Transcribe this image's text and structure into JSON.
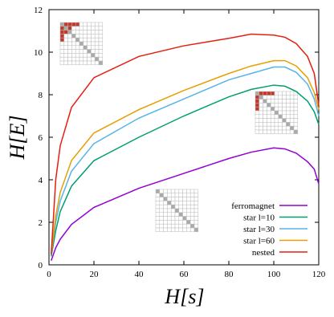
{
  "chart_data": {
    "type": "line",
    "x_label": "H[s]",
    "y_label": "H[E]",
    "x": [
      1,
      3,
      5,
      10,
      20,
      40,
      60,
      80,
      90,
      100,
      105,
      110,
      115,
      118,
      120
    ],
    "series": [
      {
        "name": "ferromagnet",
        "color": "#9400d3",
        "values": [
          0.2,
          0.8,
          1.2,
          1.9,
          2.7,
          3.6,
          4.3,
          5.0,
          5.3,
          5.5,
          5.45,
          5.25,
          4.85,
          4.5,
          3.8
        ]
      },
      {
        "name": "star l=10",
        "color": "#009e73",
        "values": [
          0.4,
          1.6,
          2.5,
          3.7,
          4.9,
          6.0,
          7.0,
          7.9,
          8.25,
          8.45,
          8.4,
          8.15,
          7.7,
          7.2,
          6.6
        ]
      },
      {
        "name": "star l=30",
        "color": "#56b4e9",
        "values": [
          0.5,
          2.0,
          3.0,
          4.4,
          5.7,
          6.9,
          7.8,
          8.7,
          9.0,
          9.3,
          9.3,
          9.05,
          8.5,
          7.8,
          7.0
        ]
      },
      {
        "name": "star l=60",
        "color": "#e69f00",
        "values": [
          0.5,
          2.3,
          3.4,
          4.9,
          6.2,
          7.3,
          8.2,
          9.0,
          9.35,
          9.6,
          9.6,
          9.35,
          8.8,
          8.1,
          7.3
        ]
      },
      {
        "name": "nested",
        "color": "#e51e10",
        "values": [
          0.5,
          4.0,
          5.6,
          7.4,
          8.8,
          9.8,
          10.3,
          10.65,
          10.85,
          10.8,
          10.7,
          10.4,
          9.8,
          9.0,
          7.5
        ]
      }
    ],
    "xlim": [
      0,
      120
    ],
    "xticks": [
      0,
      20,
      40,
      60,
      80,
      100,
      120
    ],
    "ylim": [
      0,
      12
    ],
    "yticks": [
      0,
      2,
      4,
      6,
      8,
      10,
      12
    ],
    "grid": false,
    "legend": "lower right"
  }
}
